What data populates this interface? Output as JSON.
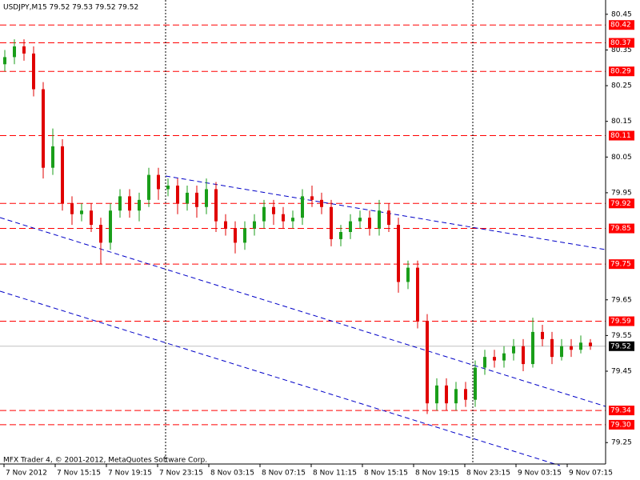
{
  "chart_data": {
    "type": "candlestick",
    "title": "USDJPY,M15  79.52 79.53 79.52 79.52",
    "footer": "MFX Trader 4, © 2001-2012, MetaQuotes Software Corp.",
    "xtick_labels": [
      "7 Nov 2012",
      "7 Nov 15:15",
      "7 Nov 19:15",
      "7 Nov 23:15",
      "8 Nov 03:15",
      "8 Nov 07:15",
      "8 Nov 11:15",
      "8 Nov 15:15",
      "8 Nov 19:15",
      "8 Nov 23:15",
      "9 Nov 03:15",
      "9 Nov 07:15"
    ],
    "ylim": [
      79.19,
      80.49
    ],
    "yticks": [
      80.45,
      80.35,
      80.25,
      80.15,
      80.05,
      79.95,
      79.65,
      79.55,
      79.45,
      79.25
    ],
    "levels": [
      80.42,
      80.37,
      80.29,
      80.11,
      79.92,
      79.85,
      79.75,
      79.59,
      79.34,
      {
        "value": 79.3,
        "label": "79.30"
      }
    ],
    "level_color": "#ff0000",
    "last": 79.52,
    "up_color": "#1a9e1a",
    "down_color": "#e00000",
    "open": [
      80.31,
      80.33,
      80.36,
      80.34,
      80.24,
      80.02,
      80.08,
      79.92,
      79.89,
      79.9,
      79.86,
      79.81,
      79.9,
      79.94,
      79.9,
      79.93,
      80.0,
      79.96,
      79.97,
      79.92,
      79.95,
      79.91,
      79.96,
      79.87,
      79.85,
      79.81,
      79.85,
      79.87,
      79.91,
      79.89,
      79.87,
      79.88,
      79.94,
      79.93,
      79.91,
      79.82,
      79.84,
      79.87,
      79.88,
      79.85,
      79.9,
      79.86,
      79.7,
      79.74,
      79.59,
      79.36,
      79.41,
      79.36,
      79.4,
      79.37,
      79.46,
      79.49,
      79.48,
      79.5,
      79.52,
      79.47,
      79.56,
      79.54,
      79.49,
      79.52,
      79.51,
      79.53
    ],
    "high": [
      80.35,
      80.38,
      80.38,
      80.36,
      80.26,
      80.13,
      80.1,
      79.94,
      79.92,
      79.92,
      79.88,
      79.92,
      79.96,
      79.96,
      79.95,
      80.02,
      80.02,
      79.99,
      79.99,
      79.97,
      79.97,
      79.99,
      79.98,
      79.89,
      79.87,
      79.87,
      79.89,
      79.93,
      79.93,
      79.91,
      79.9,
      79.96,
      79.97,
      79.95,
      79.93,
      79.86,
      79.89,
      79.9,
      79.9,
      79.93,
      79.92,
      79.88,
      79.76,
      79.76,
      79.61,
      79.43,
      79.43,
      79.42,
      79.42,
      79.48,
      79.51,
      79.51,
      79.52,
      79.54,
      79.54,
      79.6,
      79.58,
      79.56,
      79.54,
      79.54,
      79.55,
      79.54
    ],
    "low": [
      80.29,
      80.31,
      80.32,
      80.22,
      79.99,
      80.0,
      79.9,
      79.86,
      79.87,
      79.84,
      79.75,
      79.79,
      79.88,
      79.88,
      79.87,
      79.91,
      79.93,
      79.94,
      79.89,
      79.9,
      79.88,
      79.89,
      79.84,
      79.83,
      79.78,
      79.79,
      79.83,
      79.85,
      79.86,
      79.85,
      79.85,
      79.86,
      79.91,
      79.89,
      79.8,
      79.8,
      79.82,
      79.85,
      79.83,
      79.83,
      79.84,
      79.67,
      79.68,
      79.57,
      79.33,
      79.34,
      79.34,
      79.34,
      79.35,
      79.35,
      79.44,
      79.46,
      79.46,
      79.48,
      79.45,
      79.46,
      79.52,
      79.47,
      79.48,
      79.49,
      79.5,
      79.51
    ],
    "close": [
      80.33,
      80.36,
      80.34,
      80.24,
      80.02,
      80.08,
      79.92,
      79.89,
      79.9,
      79.86,
      79.81,
      79.9,
      79.94,
      79.9,
      79.93,
      80.0,
      79.96,
      79.97,
      79.92,
      79.95,
      79.91,
      79.96,
      79.87,
      79.85,
      79.81,
      79.85,
      79.87,
      79.91,
      79.89,
      79.87,
      79.88,
      79.94,
      79.93,
      79.91,
      79.82,
      79.84,
      79.87,
      79.88,
      79.85,
      79.9,
      79.86,
      79.7,
      79.74,
      79.59,
      79.36,
      79.41,
      79.36,
      79.4,
      79.37,
      79.46,
      79.49,
      79.48,
      79.5,
      79.52,
      79.47,
      79.56,
      79.54,
      79.49,
      79.52,
      79.51,
      79.53,
      79.52
    ]
  }
}
